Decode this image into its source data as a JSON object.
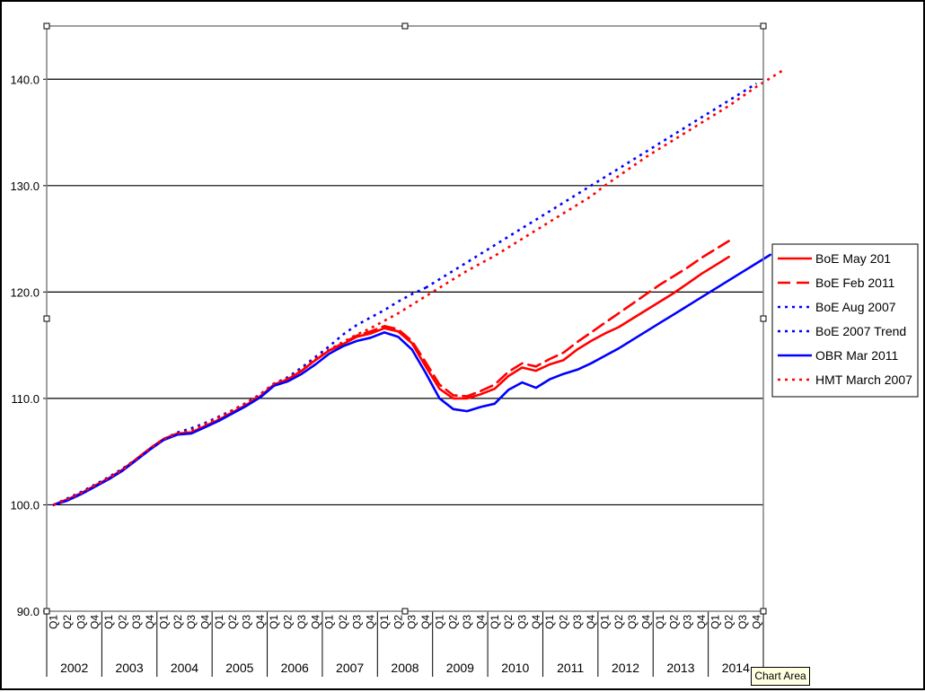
{
  "chart_data": {
    "type": "line",
    "title": "",
    "xlabel": "",
    "ylabel": "",
    "ylim": [
      90,
      145
    ],
    "yticks": [
      "90.0",
      "100.0",
      "110.0",
      "120.0",
      "130.0",
      "140.0"
    ],
    "grid": true,
    "legend_position": "right",
    "quarters": [
      "Q1",
      "Q2",
      "Q3",
      "Q4"
    ],
    "years": [
      "2002",
      "2003",
      "2004",
      "2005",
      "2006",
      "2007",
      "2008",
      "2009",
      "2010",
      "2011",
      "2012",
      "2013",
      "2014"
    ],
    "series": [
      {
        "name": "BoE May 201",
        "color": "#ff0000",
        "dash": "solid",
        "points": [
          [
            0,
            100.0
          ],
          [
            1,
            100.5
          ],
          [
            2,
            101.1
          ],
          [
            3,
            101.8
          ],
          [
            4,
            102.5
          ],
          [
            5,
            103.3
          ],
          [
            6,
            104.3
          ],
          [
            7,
            105.3
          ],
          [
            8,
            106.2
          ],
          [
            9,
            106.7
          ],
          [
            10,
            106.8
          ],
          [
            11,
            107.4
          ],
          [
            12,
            108.0
          ],
          [
            13,
            108.7
          ],
          [
            14,
            109.4
          ],
          [
            15,
            110.2
          ],
          [
            16,
            111.3
          ],
          [
            17,
            111.8
          ],
          [
            18,
            112.6
          ],
          [
            19,
            113.6
          ],
          [
            20,
            114.5
          ],
          [
            21,
            115.1
          ],
          [
            22,
            115.8
          ],
          [
            23,
            116.1
          ],
          [
            24,
            116.6
          ],
          [
            25,
            116.3
          ],
          [
            26,
            115.2
          ],
          [
            27,
            113.0
          ],
          [
            28,
            110.9
          ],
          [
            29,
            110.0
          ],
          [
            30,
            110.0
          ],
          [
            31,
            110.4
          ],
          [
            32,
            110.9
          ],
          [
            33,
            112.1
          ],
          [
            34,
            112.9
          ],
          [
            35,
            112.6
          ],
          [
            36,
            113.2
          ],
          [
            37,
            113.6
          ],
          [
            38,
            114.6
          ],
          [
            39,
            115.4
          ],
          [
            40,
            116.1
          ],
          [
            41,
            116.7
          ],
          [
            42,
            117.5
          ],
          [
            43,
            118.3
          ],
          [
            44,
            119.1
          ],
          [
            45,
            119.9
          ],
          [
            46,
            120.8
          ],
          [
            47,
            121.7
          ],
          [
            48,
            122.5
          ],
          [
            49,
            123.3
          ]
        ]
      },
      {
        "name": "BoE Feb 2011",
        "color": "#ff0000",
        "dash": "dash",
        "points": [
          [
            0,
            100.0
          ],
          [
            1,
            100.5
          ],
          [
            2,
            101.1
          ],
          [
            3,
            101.8
          ],
          [
            4,
            102.5
          ],
          [
            5,
            103.3
          ],
          [
            6,
            104.3
          ],
          [
            7,
            105.3
          ],
          [
            8,
            106.2
          ],
          [
            9,
            106.7
          ],
          [
            10,
            106.8
          ],
          [
            11,
            107.4
          ],
          [
            12,
            108.0
          ],
          [
            13,
            108.7
          ],
          [
            14,
            109.4
          ],
          [
            15,
            110.2
          ],
          [
            16,
            111.3
          ],
          [
            17,
            111.8
          ],
          [
            18,
            112.6
          ],
          [
            19,
            113.6
          ],
          [
            20,
            114.5
          ],
          [
            21,
            115.2
          ],
          [
            22,
            115.9
          ],
          [
            23,
            116.3
          ],
          [
            24,
            116.8
          ],
          [
            25,
            116.5
          ],
          [
            26,
            115.4
          ],
          [
            27,
            113.4
          ],
          [
            28,
            111.3
          ],
          [
            29,
            110.3
          ],
          [
            30,
            110.2
          ],
          [
            31,
            110.7
          ],
          [
            32,
            111.3
          ],
          [
            33,
            112.5
          ],
          [
            34,
            113.3
          ],
          [
            35,
            113.0
          ],
          [
            36,
            113.7
          ],
          [
            37,
            114.3
          ],
          [
            38,
            115.3
          ],
          [
            39,
            116.2
          ],
          [
            40,
            117.1
          ],
          [
            41,
            118.0
          ],
          [
            42,
            118.9
          ],
          [
            43,
            119.8
          ],
          [
            44,
            120.7
          ],
          [
            45,
            121.5
          ],
          [
            46,
            122.3
          ],
          [
            47,
            123.2
          ],
          [
            48,
            124.0
          ],
          [
            49,
            124.8
          ]
        ]
      },
      {
        "name": "BoE Aug 2007",
        "color": "#0000ff",
        "dash": "dot",
        "points": [
          [
            0,
            100.0
          ],
          [
            1,
            100.6
          ],
          [
            2,
            101.2
          ],
          [
            3,
            101.9
          ],
          [
            4,
            102.6
          ],
          [
            5,
            103.4
          ],
          [
            6,
            104.3
          ],
          [
            7,
            105.3
          ],
          [
            8,
            106.2
          ],
          [
            9,
            106.8
          ],
          [
            10,
            107.2
          ],
          [
            11,
            107.7
          ],
          [
            12,
            108.3
          ],
          [
            13,
            108.9
          ],
          [
            14,
            109.6
          ],
          [
            15,
            110.4
          ],
          [
            16,
            111.4
          ],
          [
            17,
            112.0
          ],
          [
            18,
            112.9
          ],
          [
            19,
            113.9
          ],
          [
            20,
            114.9
          ],
          [
            21,
            116.0
          ],
          [
            22,
            116.9
          ],
          [
            23,
            117.6
          ],
          [
            24,
            118.3
          ],
          [
            25,
            119.1
          ],
          [
            26,
            119.8
          ],
          [
            27,
            120.4
          ]
        ]
      },
      {
        "name": "BoE 2007 Trend",
        "color": "#0000ff",
        "dash": "dot",
        "points": [
          [
            27,
            120.4
          ],
          [
            28,
            121.2
          ],
          [
            29,
            122.0
          ],
          [
            30,
            122.8
          ],
          [
            31,
            123.6
          ],
          [
            32,
            124.4
          ],
          [
            33,
            125.2
          ],
          [
            34,
            126.0
          ],
          [
            35,
            126.8
          ],
          [
            36,
            127.6
          ],
          [
            37,
            128.4
          ],
          [
            38,
            129.2
          ],
          [
            39,
            130.0
          ],
          [
            40,
            130.8
          ],
          [
            41,
            131.6
          ],
          [
            42,
            132.4
          ],
          [
            43,
            133.2
          ],
          [
            44,
            134.0
          ],
          [
            45,
            134.8
          ],
          [
            46,
            135.6
          ],
          [
            47,
            136.4
          ],
          [
            48,
            137.2
          ],
          [
            49,
            138.0
          ],
          [
            50,
            138.8
          ],
          [
            51,
            139.6
          ]
        ]
      },
      {
        "name": "OBR Mar 2011",
        "color": "#0000ff",
        "dash": "solid",
        "points": [
          [
            0,
            100.0
          ],
          [
            1,
            100.4
          ],
          [
            2,
            101.0
          ],
          [
            3,
            101.7
          ],
          [
            4,
            102.4
          ],
          [
            5,
            103.2
          ],
          [
            6,
            104.2
          ],
          [
            7,
            105.2
          ],
          [
            8,
            106.1
          ],
          [
            9,
            106.6
          ],
          [
            10,
            106.7
          ],
          [
            11,
            107.3
          ],
          [
            12,
            107.9
          ],
          [
            13,
            108.6
          ],
          [
            14,
            109.3
          ],
          [
            15,
            110.1
          ],
          [
            16,
            111.2
          ],
          [
            17,
            111.6
          ],
          [
            18,
            112.3
          ],
          [
            19,
            113.2
          ],
          [
            20,
            114.2
          ],
          [
            21,
            114.9
          ],
          [
            22,
            115.4
          ],
          [
            23,
            115.7
          ],
          [
            24,
            116.2
          ],
          [
            25,
            115.8
          ],
          [
            26,
            114.6
          ],
          [
            27,
            112.4
          ],
          [
            28,
            110.0
          ],
          [
            29,
            109.0
          ],
          [
            30,
            108.8
          ],
          [
            31,
            109.2
          ],
          [
            32,
            109.5
          ],
          [
            33,
            110.8
          ],
          [
            34,
            111.5
          ],
          [
            35,
            111.0
          ],
          [
            36,
            111.8
          ],
          [
            37,
            112.3
          ],
          [
            38,
            112.7
          ],
          [
            39,
            113.3
          ],
          [
            40,
            114.0
          ],
          [
            41,
            114.7
          ],
          [
            42,
            115.5
          ],
          [
            43,
            116.3
          ],
          [
            44,
            117.1
          ],
          [
            45,
            117.9
          ],
          [
            46,
            118.7
          ],
          [
            47,
            119.5
          ],
          [
            48,
            120.3
          ],
          [
            49,
            121.1
          ],
          [
            50,
            121.9
          ],
          [
            51,
            122.7
          ],
          [
            52,
            123.5
          ]
        ]
      },
      {
        "name": "HMT March 2007",
        "color": "#ff0000",
        "dash": "dot",
        "points": [
          [
            0,
            100.0
          ],
          [
            1,
            100.5
          ],
          [
            2,
            101.1
          ],
          [
            3,
            101.8
          ],
          [
            4,
            102.5
          ],
          [
            5,
            103.3
          ],
          [
            6,
            104.3
          ],
          [
            7,
            105.3
          ],
          [
            8,
            106.2
          ],
          [
            9,
            106.7
          ],
          [
            10,
            107.0
          ],
          [
            11,
            107.6
          ],
          [
            12,
            108.2
          ],
          [
            13,
            108.9
          ],
          [
            14,
            109.6
          ],
          [
            15,
            110.4
          ],
          [
            16,
            111.4
          ],
          [
            17,
            111.9
          ],
          [
            18,
            112.7
          ],
          [
            19,
            113.7
          ],
          [
            20,
            114.6
          ],
          [
            21,
            115.3
          ],
          [
            22,
            116.0
          ],
          [
            23,
            116.6
          ],
          [
            24,
            117.3
          ],
          [
            25,
            118.0
          ],
          [
            26,
            118.8
          ],
          [
            27,
            119.6
          ],
          [
            28,
            120.4
          ],
          [
            29,
            121.2
          ],
          [
            30,
            122.0
          ],
          [
            31,
            122.7
          ],
          [
            32,
            123.4
          ],
          [
            33,
            124.2
          ],
          [
            34,
            125.0
          ],
          [
            35,
            125.8
          ],
          [
            36,
            126.6
          ],
          [
            37,
            127.4
          ],
          [
            38,
            128.2
          ],
          [
            39,
            129.0
          ],
          [
            40,
            130.0
          ],
          [
            41,
            130.9
          ],
          [
            42,
            131.8
          ],
          [
            43,
            132.7
          ],
          [
            44,
            133.5
          ],
          [
            45,
            134.3
          ],
          [
            46,
            135.1
          ],
          [
            47,
            135.9
          ],
          [
            48,
            136.7
          ],
          [
            49,
            137.5
          ],
          [
            50,
            138.4
          ],
          [
            51,
            139.3
          ],
          [
            52,
            140.1
          ],
          [
            53,
            140.9
          ]
        ]
      }
    ]
  },
  "tooltip": {
    "text": "Chart Area"
  }
}
